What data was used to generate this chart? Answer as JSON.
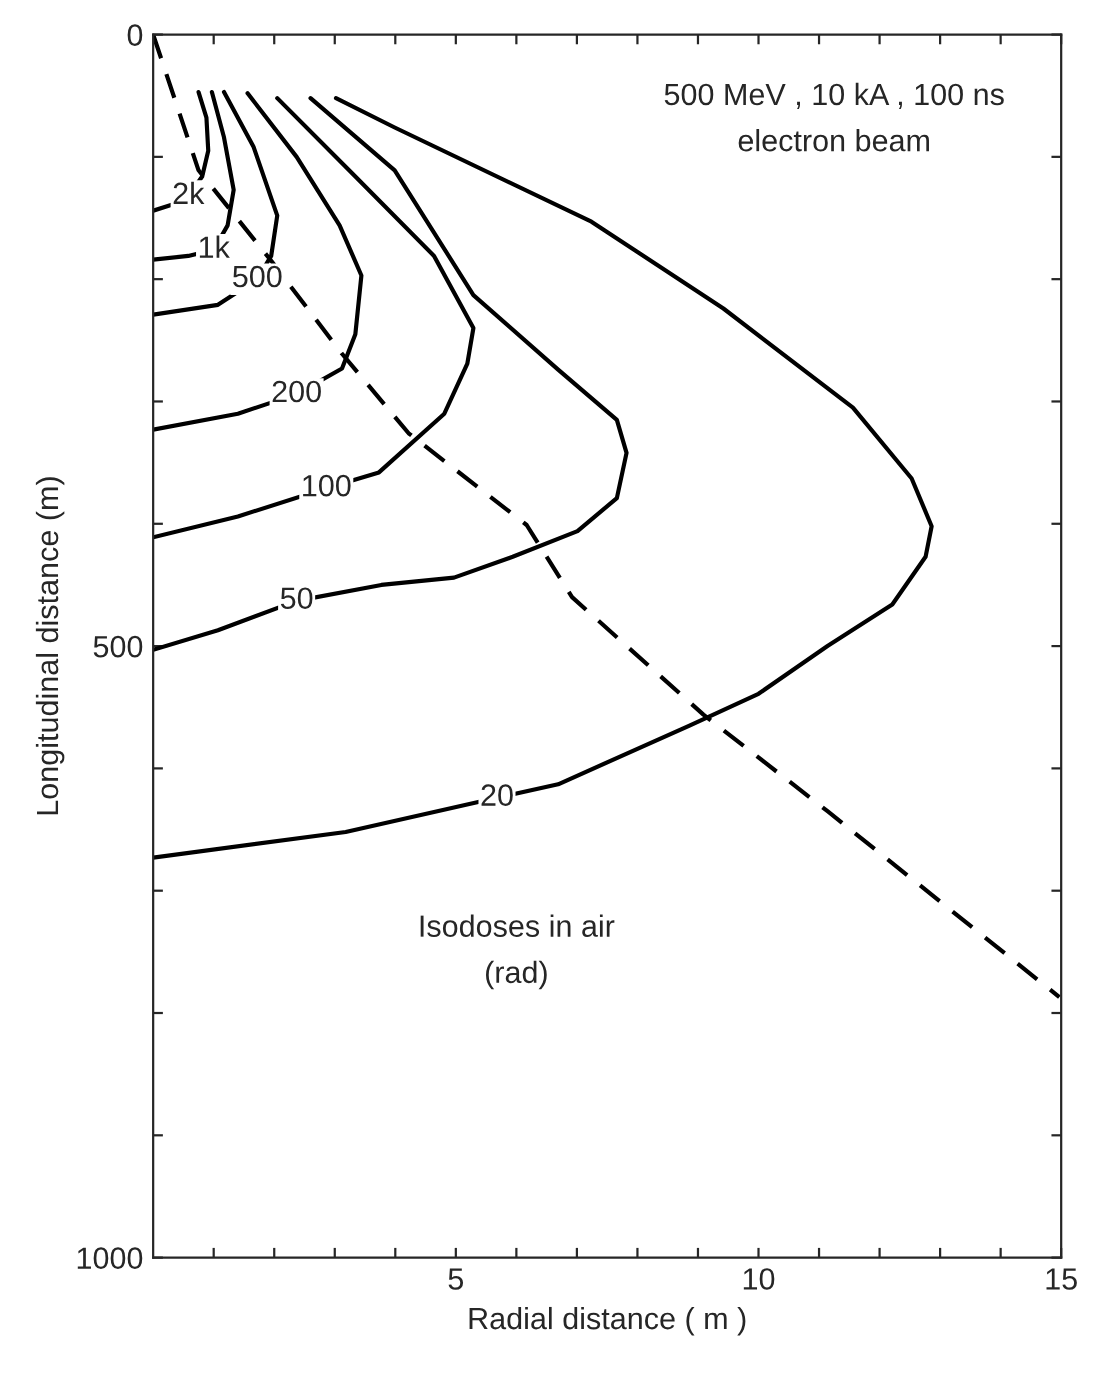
{
  "chart_data": {
    "type": "line",
    "xlabel": "Radial distance ( m )",
    "ylabel": "Longitudinal distance (m)",
    "xlim": [
      0,
      15
    ],
    "ylim": [
      1000,
      0
    ],
    "xticks": [
      {
        "value": 1,
        "label": null
      },
      {
        "value": 2,
        "label": null
      },
      {
        "value": 3,
        "label": null
      },
      {
        "value": 4,
        "label": null
      },
      5,
      {
        "value": 6,
        "label": null
      },
      {
        "value": 7,
        "label": null
      },
      {
        "value": 8,
        "label": null
      },
      {
        "value": 9,
        "label": null
      },
      10,
      {
        "value": 11,
        "label": null
      },
      {
        "value": 12,
        "label": null
      },
      {
        "value": 13,
        "label": null
      },
      {
        "value": 14,
        "label": null
      },
      15
    ],
    "yticks": [
      0,
      {
        "value": 100,
        "label": null
      },
      {
        "value": 200,
        "label": null
      },
      {
        "value": 300,
        "label": null
      },
      {
        "value": 400,
        "label": null
      },
      500,
      {
        "value": 600,
        "label": null
      },
      {
        "value": 700,
        "label": null
      },
      {
        "value": 800,
        "label": null
      },
      {
        "value": 900,
        "label": null
      },
      1000
    ],
    "grid": false,
    "legend": false,
    "annotations": [
      "500 MeV , 10 kA , 100 ns\nelectron beam",
      "Isodoses in air\n(rad)"
    ],
    "series": [
      {
        "name": "2k",
        "color": "#000000",
        "line_style": "solid",
        "x": [
          0.75,
          0.88,
          0.91,
          0.81,
          0.58,
          0.32,
          0
        ],
        "values": [
          47,
          68,
          95,
          116,
          132,
          139,
          144
        ]
      },
      {
        "name": "1k",
        "color": "#000000",
        "line_style": "solid",
        "x": [
          0.97,
          1.17,
          1.33,
          1.23,
          1.0,
          0.58,
          0
        ],
        "values": [
          47,
          84,
          127,
          156,
          176,
          181,
          184
        ]
      },
      {
        "name": "500",
        "color": "#000000",
        "line_style": "solid",
        "x": [
          1.17,
          1.66,
          2.05,
          1.95,
          1.72,
          1.07,
          0
        ],
        "values": [
          47,
          92,
          148,
          181,
          200,
          221,
          229
        ]
      },
      {
        "name": "200",
        "color": "#000000",
        "line_style": "solid",
        "x": [
          1.56,
          2.37,
          3.08,
          3.44,
          3.34,
          3.12,
          2.37,
          1.4,
          0
        ],
        "values": [
          48,
          100,
          156,
          197,
          245,
          273,
          294,
          310,
          323
        ]
      },
      {
        "name": "100",
        "color": "#000000",
        "line_style": "solid",
        "x": [
          2.05,
          3.34,
          4.64,
          5.29,
          5.19,
          4.81,
          3.73,
          2.86,
          1.4,
          0
        ],
        "values": [
          52,
          116,
          181,
          240,
          269,
          310,
          358,
          371,
          394,
          411
        ]
      },
      {
        "name": "50",
        "color": "#000000",
        "line_style": "solid",
        "x": [
          2.6,
          3.99,
          5.29,
          6.69,
          7.66,
          7.82,
          7.66,
          7.01,
          5.94,
          4.97,
          3.77,
          2.37,
          1.07,
          0
        ],
        "values": [
          52,
          111,
          213,
          274,
          315,
          342,
          379,
          406,
          427,
          444,
          450,
          463,
          487,
          503
        ]
      },
      {
        "name": "20",
        "color": "#000000",
        "line_style": "solid",
        "x": [
          3.02,
          3.99,
          7.24,
          9.42,
          11.56,
          12.53,
          12.86,
          12.76,
          12.21,
          11.14,
          10.0,
          8.86,
          6.69,
          5.68,
          3.18,
          0
        ],
        "values": [
          52,
          76,
          153,
          224,
          305,
          363,
          402,
          427,
          466,
          500,
          539,
          565,
          613,
          624,
          652,
          673
        ]
      },
      {
        "color": "#000000",
        "line_style": "dashed",
        "x": [
          0,
          0.75,
          1.95,
          3.12,
          4.22,
          6.17,
          6.92,
          9.09,
          11.14,
          14.97
        ],
        "values": [
          0,
          111,
          185,
          261,
          326,
          401,
          460,
          556,
          635,
          787
        ]
      }
    ]
  }
}
